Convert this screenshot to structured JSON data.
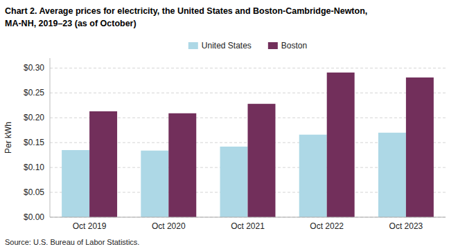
{
  "chart_data": {
    "type": "bar",
    "title": "Chart 2. Average prices for electricity, the United States and Boston-Cambridge-Newton,",
    "subtitle": "MA-NH, 2019–23 (as of October)",
    "ylabel": "Per kWh",
    "source": "Source: U.S. Bureau of Labor Statistics.",
    "categories": [
      "Oct 2019",
      "Oct 2020",
      "Oct 2021",
      "Oct 2022",
      "Oct 2023"
    ],
    "series": [
      {
        "name": "United States",
        "color": "#add8e6",
        "values": [
          0.135,
          0.134,
          0.142,
          0.166,
          0.17
        ]
      },
      {
        "name": "Boston",
        "color": "#722F5B",
        "values": [
          0.213,
          0.209,
          0.228,
          0.291,
          0.281
        ]
      }
    ],
    "ylim": [
      0.0,
      0.32
    ],
    "yticks": [
      {
        "value": 0.0,
        "label": "$0.00"
      },
      {
        "value": 0.05,
        "label": "$0.05"
      },
      {
        "value": 0.1,
        "label": "$0.10"
      },
      {
        "value": 0.15,
        "label": "$0.15"
      },
      {
        "value": 0.2,
        "label": "$0.20"
      },
      {
        "value": 0.25,
        "label": "$0.25"
      },
      {
        "value": 0.3,
        "label": "$0.30"
      }
    ],
    "grid": true,
    "legend": "top"
  }
}
